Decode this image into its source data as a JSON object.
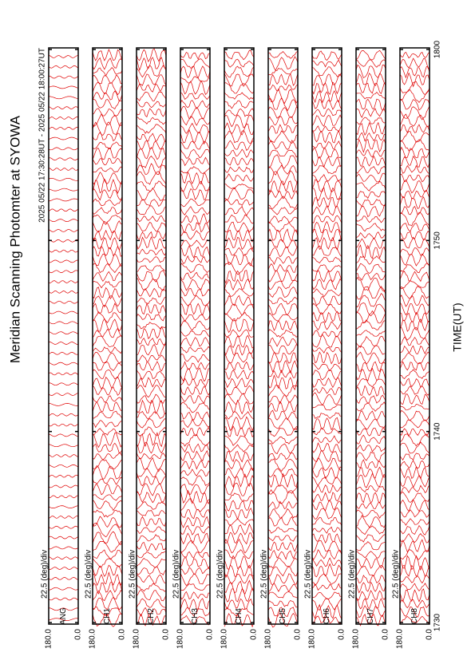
{
  "chart_data": {
    "type": "line",
    "title": "Meridian Scanning Photomter at SYOWA",
    "subtitle": "2025 05/22 17:30:28UT - 2025 05/22 18:00:27UT",
    "x_label": "TIME(UT)",
    "xlim": [
      0,
      30
    ],
    "xticks": [
      {
        "value": 0,
        "label": "1730"
      },
      {
        "value": 10,
        "label": "1740"
      },
      {
        "value": 20,
        "label": "1750"
      },
      {
        "value": 30,
        "label": "1800"
      }
    ],
    "color": "#e00000",
    "panels": [
      {
        "label": "ANG",
        "annotation": "22.5 (deg)/div",
        "ylim": [
          0,
          180
        ],
        "yticks": [
          {
            "value": 180,
            "label": "180.0"
          },
          {
            "value": 0,
            "label": "0.0"
          }
        ]
      },
      {
        "label": "CH1",
        "annotation": "22.5 (deg)/div",
        "ylim": [
          0,
          180
        ],
        "yticks": [
          {
            "value": 180,
            "label": "180.0"
          },
          {
            "value": 0,
            "label": "0.0"
          }
        ]
      },
      {
        "label": "CH2",
        "annotation": "22.5 (deg)/div",
        "ylim": [
          0,
          180
        ],
        "yticks": [
          {
            "value": 180,
            "label": "180.0"
          },
          {
            "value": 0,
            "label": "0.0"
          }
        ]
      },
      {
        "label": "CH3",
        "annotation": "22.5 (deg)/div",
        "ylim": [
          0,
          180
        ],
        "yticks": [
          {
            "value": 180,
            "label": "180.0"
          },
          {
            "value": 0,
            "label": "0.0"
          }
        ]
      },
      {
        "label": "CH4",
        "annotation": "22.5 (deg)/div",
        "ylim": [
          0,
          180
        ],
        "yticks": [
          {
            "value": 180,
            "label": "180.0"
          },
          {
            "value": 0,
            "label": "0.0"
          }
        ]
      },
      {
        "label": "CH5",
        "annotation": "22.5 (deg)/div",
        "ylim": [
          0,
          180
        ],
        "yticks": [
          {
            "value": 180,
            "label": "180.0"
          },
          {
            "value": 0,
            "label": "0.0"
          }
        ]
      },
      {
        "label": "CH6",
        "annotation": "22.5 (deg)/div",
        "ylim": [
          0,
          180
        ],
        "yticks": [
          {
            "value": 180,
            "label": "180.0"
          },
          {
            "value": 0,
            "label": "0.0"
          }
        ]
      },
      {
        "label": "CH7",
        "annotation": "22.5 (deg)/div",
        "ylim": [
          0,
          180
        ],
        "yticks": [
          {
            "value": 180,
            "label": "180.0"
          },
          {
            "value": 0,
            "label": "0.0"
          }
        ]
      },
      {
        "label": "CH8",
        "annotation": "22.5 (deg)/div",
        "ylim": [
          0,
          180
        ],
        "yticks": [
          {
            "value": 180,
            "label": "180.0"
          },
          {
            "value": 0,
            "label": "0.0"
          }
        ]
      }
    ]
  }
}
